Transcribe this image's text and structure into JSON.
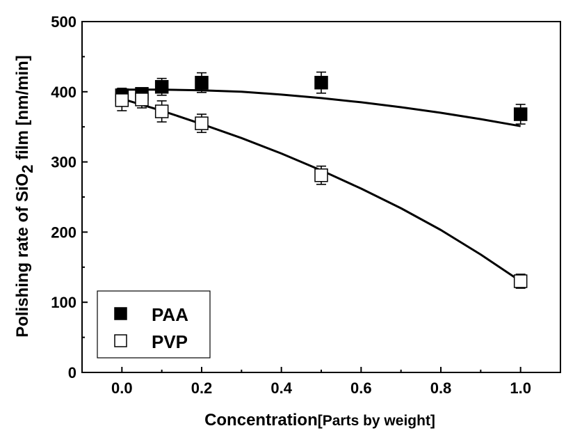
{
  "chart_data": {
    "type": "scatter",
    "xlabel": {
      "main": "Concentration",
      "bracket": "[Parts by weight]"
    },
    "ylabel": {
      "pre": "Polishing rate of SiO",
      "sub": "2",
      "post": " film [nm/min]"
    },
    "xlim": [
      -0.1,
      1.1
    ],
    "ylim": [
      0,
      500
    ],
    "xticks": [
      0.0,
      0.2,
      0.4,
      0.6,
      0.8,
      1.0
    ],
    "xtick_labels": [
      "0.0",
      "0.2",
      "0.4",
      "0.6",
      "0.8",
      "1.0"
    ],
    "yticks": [
      0,
      100,
      200,
      300,
      400,
      500
    ],
    "ytick_labels": [
      "0",
      "100",
      "200",
      "300",
      "400",
      "500"
    ],
    "grid": false,
    "legend_position": "bottom-left",
    "series": [
      {
        "name": "PAA",
        "marker": "filled-square",
        "color": "#000000",
        "x": [
          0.0,
          0.05,
          0.1,
          0.2,
          0.5,
          1.0
        ],
        "y": [
          395,
          397,
          407,
          413,
          413,
          368
        ],
        "err": [
          10,
          8,
          12,
          14,
          15,
          14
        ],
        "fit": [
          [
            0.0,
            403
          ],
          [
            0.1,
            403
          ],
          [
            0.2,
            402
          ],
          [
            0.3,
            400
          ],
          [
            0.4,
            396
          ],
          [
            0.5,
            391
          ],
          [
            0.6,
            385
          ],
          [
            0.7,
            378
          ],
          [
            0.8,
            370
          ],
          [
            0.9,
            361
          ],
          [
            1.0,
            351
          ]
        ]
      },
      {
        "name": "PVP",
        "marker": "open-square",
        "color": "#000000",
        "x": [
          0.0,
          0.05,
          0.1,
          0.2,
          0.5,
          1.0
        ],
        "y": [
          388,
          389,
          372,
          355,
          281,
          130
        ],
        "err": [
          15,
          12,
          15,
          13,
          13,
          10
        ],
        "fit": [
          [
            0.0,
            390
          ],
          [
            0.1,
            373
          ],
          [
            0.2,
            354
          ],
          [
            0.3,
            334
          ],
          [
            0.4,
            312
          ],
          [
            0.5,
            288
          ],
          [
            0.6,
            262
          ],
          [
            0.7,
            234
          ],
          [
            0.8,
            203
          ],
          [
            0.9,
            168
          ],
          [
            1.0,
            130
          ]
        ]
      }
    ]
  }
}
